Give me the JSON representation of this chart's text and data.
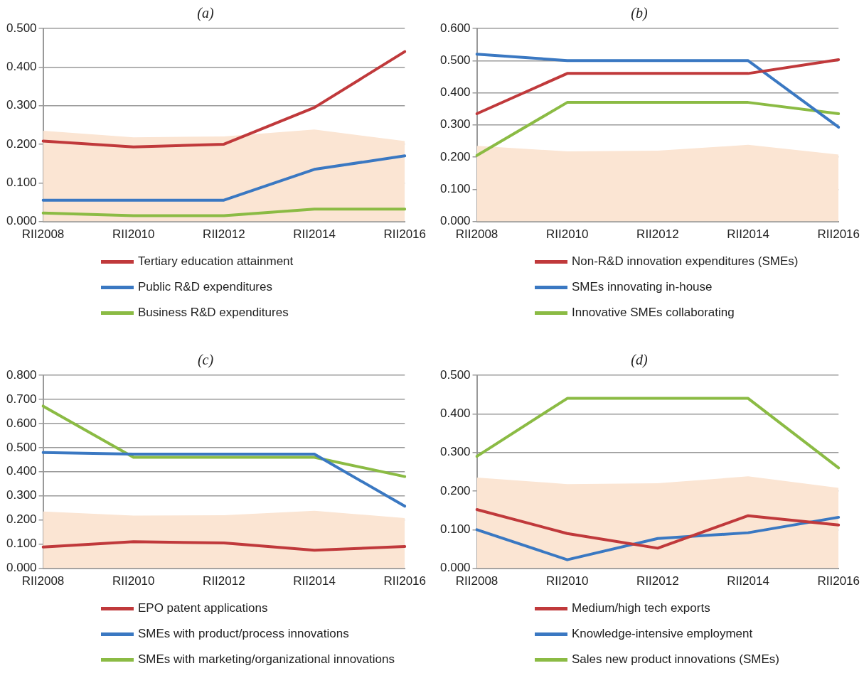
{
  "chart_data": [
    {
      "type": "line",
      "title": "(a)",
      "categories": [
        "RII2008",
        "RII2010",
        "RII2012",
        "RII2014",
        "RII2016"
      ],
      "ylim": [
        0,
        0.5
      ],
      "yticks": [
        {
          "value": 0,
          "label": "0.000"
        },
        {
          "value": 0.1,
          "label": "0.100"
        },
        {
          "value": 0.2,
          "label": "0.200"
        },
        {
          "value": 0.3,
          "label": "0.300"
        },
        {
          "value": 0.4,
          "label": "0.400"
        },
        {
          "value": 0.5,
          "label": "0.500"
        }
      ],
      "grid": "y",
      "legend": "bottom",
      "marker": "none",
      "line_style": "solid",
      "series": [
        {
          "type": "area",
          "color": "#fbe5d3",
          "values": [
            0.235,
            0.218,
            0.22,
            0.238,
            0.208
          ]
        },
        {
          "name": "Tertiary education attainment",
          "color": "#c0393b",
          "values": [
            0.208,
            0.193,
            0.2,
            0.295,
            0.44
          ]
        },
        {
          "name": "Public R&D expenditures",
          "color": "#3a78c2",
          "values": [
            0.055,
            0.055,
            0.055,
            0.135,
            0.17
          ]
        },
        {
          "name": "Business R&D expenditures",
          "color": "#8bbb44",
          "values": [
            0.022,
            0.015,
            0.015,
            0.032,
            0.032
          ]
        }
      ]
    },
    {
      "type": "line",
      "title": "(b)",
      "categories": [
        "RII2008",
        "RII2010",
        "RII2012",
        "RII2014",
        "RII2016"
      ],
      "ylim": [
        0,
        0.6
      ],
      "yticks": [
        {
          "value": 0,
          "label": "0.000"
        },
        {
          "value": 0.1,
          "label": "0.100"
        },
        {
          "value": 0.2,
          "label": "0.200"
        },
        {
          "value": 0.3,
          "label": "0.300"
        },
        {
          "value": 0.4,
          "label": "0.400"
        },
        {
          "value": 0.5,
          "label": "0.500"
        },
        {
          "value": 0.6,
          "label": "0.600"
        }
      ],
      "grid": "y",
      "legend": "bottom",
      "marker": "none",
      "line_style": "solid",
      "series": [
        {
          "type": "area",
          "color": "#fbe5d3",
          "values": [
            0.235,
            0.218,
            0.22,
            0.238,
            0.208
          ]
        },
        {
          "name": "Non-R&D innovation expenditures (SMEs)",
          "color": "#c0393b",
          "values": [
            0.335,
            0.46,
            0.46,
            0.46,
            0.503
          ]
        },
        {
          "name": "SMEs innovating in-house",
          "color": "#3a78c2",
          "values": [
            0.52,
            0.5,
            0.5,
            0.5,
            0.293
          ]
        },
        {
          "name": "Innovative SMEs collaborating",
          "color": "#8bbb44",
          "values": [
            0.205,
            0.37,
            0.37,
            0.37,
            0.335
          ]
        }
      ]
    },
    {
      "type": "line",
      "title": "(c)",
      "categories": [
        "RII2008",
        "RII2010",
        "RII2012",
        "RII2014",
        "RII2016"
      ],
      "ylim": [
        0,
        0.8
      ],
      "yticks": [
        {
          "value": 0,
          "label": "0.000"
        },
        {
          "value": 0.1,
          "label": "0.100"
        },
        {
          "value": 0.2,
          "label": "0.200"
        },
        {
          "value": 0.3,
          "label": "0.300"
        },
        {
          "value": 0.4,
          "label": "0.400"
        },
        {
          "value": 0.5,
          "label": "0.500"
        },
        {
          "value": 0.6,
          "label": "0.600"
        },
        {
          "value": 0.7,
          "label": "0.700"
        },
        {
          "value": 0.8,
          "label": "0.800"
        }
      ],
      "grid": "y",
      "legend": "bottom",
      "marker": "none",
      "line_style": "solid",
      "series": [
        {
          "type": "area",
          "color": "#fbe5d3",
          "values": [
            0.235,
            0.218,
            0.22,
            0.238,
            0.208
          ]
        },
        {
          "name": "EPO patent applications",
          "color": "#c0393b",
          "values": [
            0.088,
            0.11,
            0.105,
            0.075,
            0.09
          ]
        },
        {
          "name": "SMEs with product/process innovations",
          "color": "#3a78c2",
          "values": [
            0.48,
            0.473,
            0.473,
            0.473,
            0.257
          ]
        },
        {
          "name": "SMEs with marketing/organizational innovations",
          "color": "#8bbb44",
          "values": [
            0.672,
            0.46,
            0.46,
            0.46,
            0.38
          ]
        }
      ]
    },
    {
      "type": "line",
      "title": "(d)",
      "categories": [
        "RII2008",
        "RII2010",
        "RII2012",
        "RII2014",
        "RII2016"
      ],
      "ylim": [
        0,
        0.5
      ],
      "yticks": [
        {
          "value": 0,
          "label": "0.000"
        },
        {
          "value": 0.1,
          "label": "0.100"
        },
        {
          "value": 0.2,
          "label": "0.200"
        },
        {
          "value": 0.3,
          "label": "0.300"
        },
        {
          "value": 0.4,
          "label": "0.400"
        },
        {
          "value": 0.5,
          "label": "0.500"
        }
      ],
      "grid": "y",
      "legend": "bottom",
      "marker": "none",
      "line_style": "solid",
      "series": [
        {
          "type": "area",
          "color": "#fbe5d3",
          "values": [
            0.235,
            0.218,
            0.22,
            0.238,
            0.208
          ]
        },
        {
          "name": "Medium/high tech exports",
          "color": "#c0393b",
          "values": [
            0.152,
            0.09,
            0.052,
            0.136,
            0.112
          ]
        },
        {
          "name": "Knowledge-intensive employment",
          "color": "#3a78c2",
          "values": [
            0.1,
            0.022,
            0.077,
            0.092,
            0.132
          ]
        },
        {
          "name": "Sales new product innovations (SMEs)",
          "color": "#8bbb44",
          "values": [
            0.29,
            0.44,
            0.44,
            0.44,
            0.26
          ]
        }
      ]
    }
  ]
}
